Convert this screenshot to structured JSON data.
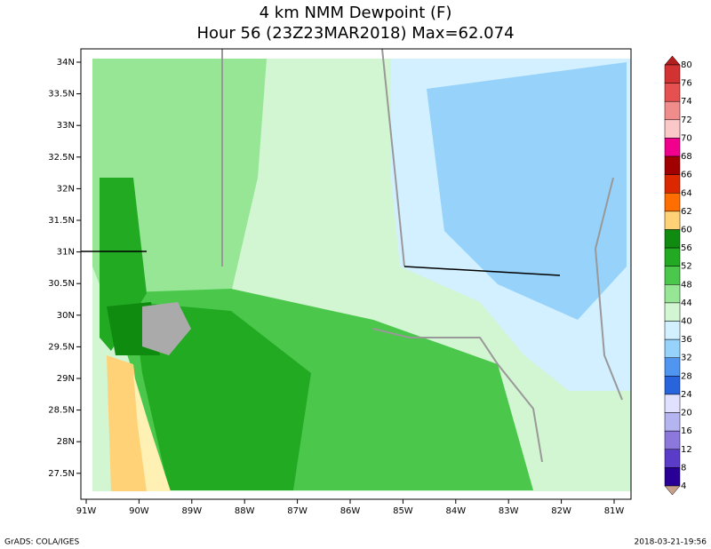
{
  "header": {
    "title": "4 km NMM Dewpoint (F)",
    "subtitle": "Hour 56 (23Z23MAR2018) Max=62.074"
  },
  "map": {
    "lon_ticks": [
      "91W",
      "90W",
      "89W",
      "88W",
      "87W",
      "86W",
      "85W",
      "84W",
      "83W",
      "82W",
      "81W"
    ],
    "lat_ticks": [
      "34N",
      "33.5N",
      "33N",
      "32.5N",
      "32N",
      "31.5N",
      "31N",
      "30.5N",
      "30N",
      "29.5N",
      "29N",
      "28.5N",
      "28N",
      "27.5N"
    ]
  },
  "colorbar": {
    "levels": [
      80,
      76,
      74,
      72,
      70,
      68,
      66,
      64,
      62,
      60,
      56,
      52,
      48,
      44,
      40,
      36,
      32,
      28,
      24,
      20,
      16,
      12,
      8,
      4
    ],
    "colors": [
      "#b41e1e",
      "#d23232",
      "#e65050",
      "#f08c8c",
      "#fac8c8",
      "#f0008c",
      "#a00000",
      "#dc2800",
      "#ff6e00",
      "#ffd278",
      "#0f8c0f",
      "#23aa23",
      "#4bc84b",
      "#96e696",
      "#d2f5d2",
      "#d2f0ff",
      "#96d2fa",
      "#5096f0",
      "#2864dc",
      "#e1e1ff",
      "#b4b4f0",
      "#8c78dc",
      "#5a3cc8",
      "#280096",
      "#c8a08c"
    ]
  },
  "footer": {
    "left": "GrADS: COLA/IGES",
    "right": "2018-03-21-19:56"
  }
}
